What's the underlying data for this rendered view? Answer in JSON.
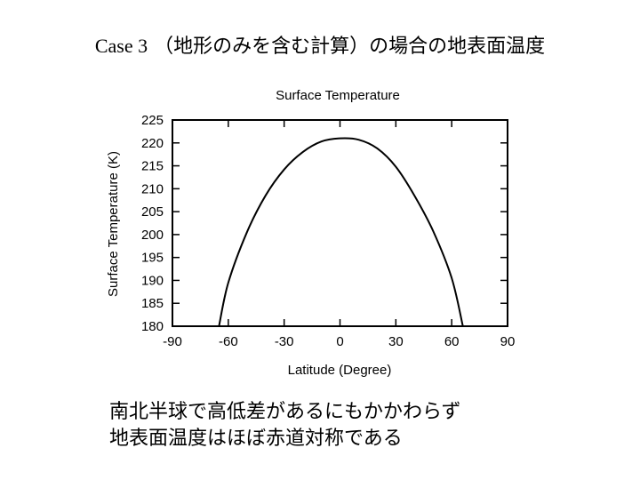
{
  "slide": {
    "title_prefix": "Case 3",
    "title_main": "（地形のみを含む計算）の場合の地表面温度",
    "caption_line1": "南北半球で高低差があるにもかかわらず",
    "caption_line2": "地表面温度はほぼ赤道対称である"
  },
  "chart_data": {
    "type": "line",
    "title": "Surface Temperature",
    "xlabel": "Latitude (Degree)",
    "ylabel": "Surface Temperature (K)",
    "xlim": [
      -90,
      90
    ],
    "ylim": [
      180,
      225
    ],
    "xticks": [
      -90,
      -60,
      -30,
      0,
      30,
      60,
      90
    ],
    "yticks": [
      180,
      185,
      190,
      195,
      200,
      205,
      210,
      215,
      220,
      225
    ],
    "grid": false,
    "series": [
      {
        "name": "Surface Temperature",
        "x": [
          -65,
          -60,
          -50,
          -40,
          -30,
          -20,
          -10,
          0,
          10,
          20,
          30,
          40,
          50,
          60,
          66
        ],
        "y": [
          180,
          189.5,
          200.5,
          208.5,
          214.2,
          218,
          220.3,
          221,
          220.7,
          218.8,
          214.8,
          208.5,
          200.8,
          190.5,
          180
        ],
        "color": "#000000"
      }
    ]
  }
}
